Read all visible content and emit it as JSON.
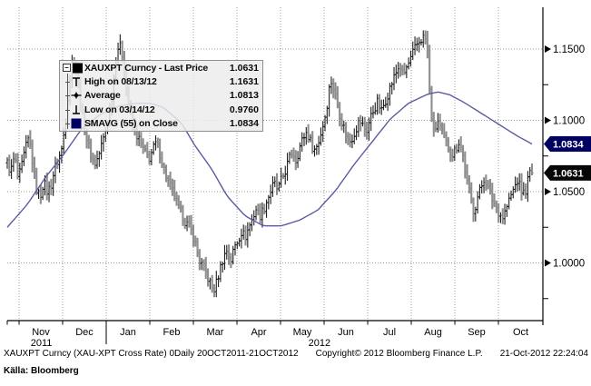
{
  "legend": {
    "rows": [
      {
        "icon": "expander-black-square",
        "label": "XAUXPT Curncy - Last Price",
        "value": "1.0631"
      },
      {
        "icon": "high-marker",
        "label": "High on 08/13/12",
        "value": "1.1631"
      },
      {
        "icon": "average-marker",
        "label": "Average",
        "value": "1.0813"
      },
      {
        "icon": "low-marker",
        "label": "Low on 03/14/12",
        "value": "0.9760"
      },
      {
        "icon": "navy-square",
        "label": "SMAVG (55) on Close",
        "value": "1.0834"
      }
    ]
  },
  "footer": {
    "line1_left": "XAUXPT Curncy (XAU-XPT Cross Rate) 0Daily 20OCT2011-21OCT2012",
    "line1_mid": "Copyright© 2012 Bloomberg Finance L.P.",
    "line1_right": "21-Oct-2012 22:24:04",
    "source": "Källa: Bloomberg"
  },
  "chart_data": {
    "type": "ohlc+line",
    "title": "XAUXPT Curncy (XAU-XPT Cross Rate) Daily, 20OCT2011-21OCT2012",
    "legend_position": "top-left",
    "grid": "dotted",
    "y_axis": {
      "side": "right",
      "major_ticks": [
        1.15,
        1.1,
        1.05,
        1.0
      ],
      "minor_ticks": [
        1.125,
        1.075,
        1.025,
        0.975
      ],
      "range": [
        0.96,
        1.175
      ],
      "decimals": 4
    },
    "price_tags": [
      {
        "value": "1.0834",
        "name": "sma-tag",
        "bg": "#000063",
        "fg": "#ffffff",
        "v": 1.0834
      },
      {
        "value": "1.0631",
        "name": "last-tag",
        "bg": "#070707",
        "fg": "#ffffff",
        "v": 1.0631
      }
    ],
    "x_axis": {
      "month_boundaries_t": [
        0.0225,
        0.1055,
        0.1886,
        0.2716,
        0.3547,
        0.4377,
        0.5208,
        0.6038,
        0.6869,
        0.7699,
        0.853,
        0.936
      ],
      "months": [
        {
          "label": "Nov",
          "t": 0.064
        },
        {
          "label": "Dec",
          "t": 0.1471
        },
        {
          "label": "Jan",
          "t": 0.2301
        },
        {
          "label": "Feb",
          "t": 0.3132
        },
        {
          "label": "Mar",
          "t": 0.3962
        },
        {
          "label": "Apr",
          "t": 0.4793
        },
        {
          "label": "May",
          "t": 0.5623
        },
        {
          "label": "Jun",
          "t": 0.6454
        },
        {
          "label": "Jul",
          "t": 0.7284
        },
        {
          "label": "Aug",
          "t": 0.8115
        },
        {
          "label": "Sep",
          "t": 0.8945
        },
        {
          "label": "Oct",
          "t": 0.9784
        }
      ],
      "years": [
        {
          "label": "2011",
          "t": 0.065
        },
        {
          "label": "2012",
          "t": 0.595
        }
      ],
      "year_divider_t": 0.1886
    },
    "stats": {
      "last": 1.0631,
      "high": 1.1631,
      "high_date": "08/13/12",
      "average": 1.0813,
      "low": 0.976,
      "low_date": "03/14/12",
      "sma_55_close": 1.0834
    },
    "series": {
      "bars": 252,
      "jitter": {
        "close": 0.007,
        "wick": 0.0045
      },
      "close_anchors": [
        [
          0.0,
          1.07
        ],
        [
          0.0069,
          1.064
        ],
        [
          0.0138,
          1.075
        ],
        [
          0.0208,
          1.058
        ],
        [
          0.0277,
          1.068
        ],
        [
          0.0346,
          1.08
        ],
        [
          0.0415,
          1.088
        ],
        [
          0.0484,
          1.07
        ],
        [
          0.0554,
          1.052
        ],
        [
          0.0623,
          1.046
        ],
        [
          0.0692,
          1.057
        ],
        [
          0.0761,
          1.05
        ],
        [
          0.083,
          1.054
        ],
        [
          0.09,
          1.066
        ],
        [
          0.0969,
          1.072
        ],
        [
          0.1038,
          1.08
        ],
        [
          0.1107,
          1.098
        ],
        [
          0.1176,
          1.125
        ],
        [
          0.1246,
          1.142
        ],
        [
          0.1315,
          1.138
        ],
        [
          0.1384,
          1.115
        ],
        [
          0.1453,
          1.098
        ],
        [
          0.1522,
          1.086
        ],
        [
          0.1592,
          1.076
        ],
        [
          0.1661,
          1.069
        ],
        [
          0.173,
          1.074
        ],
        [
          0.1799,
          1.083
        ],
        [
          0.1869,
          1.092
        ],
        [
          0.1938,
          1.105
        ],
        [
          0.2007,
          1.12
        ],
        [
          0.2076,
          1.147
        ],
        [
          0.2128,
          1.153
        ],
        [
          0.218,
          1.149
        ],
        [
          0.2232,
          1.137
        ],
        [
          0.2284,
          1.118
        ],
        [
          0.2353,
          1.102
        ],
        [
          0.2422,
          1.093
        ],
        [
          0.2491,
          1.088
        ],
        [
          0.2561,
          1.082
        ],
        [
          0.263,
          1.077
        ],
        [
          0.2699,
          1.073
        ],
        [
          0.2768,
          1.079
        ],
        [
          0.2837,
          1.084
        ],
        [
          0.2907,
          1.077
        ],
        [
          0.2976,
          1.067
        ],
        [
          0.3045,
          1.059
        ],
        [
          0.3114,
          1.053
        ],
        [
          0.3183,
          1.047
        ],
        [
          0.3253,
          1.039
        ],
        [
          0.3322,
          1.034
        ],
        [
          0.3391,
          1.029
        ],
        [
          0.346,
          1.025
        ],
        [
          0.3529,
          1.021
        ],
        [
          0.3599,
          1.011
        ],
        [
          0.3668,
          1.001
        ],
        [
          0.3737,
          0.997
        ],
        [
          0.3806,
          0.991
        ],
        [
          0.3875,
          0.985
        ],
        [
          0.3927,
          0.98
        ],
        [
          0.3979,
          0.985
        ],
        [
          0.4048,
          0.995
        ],
        [
          0.4117,
          1.004
        ],
        [
          0.4187,
          1.009
        ],
        [
          0.4256,
          1.001
        ],
        [
          0.4325,
          1.011
        ],
        [
          0.4394,
          1.016
        ],
        [
          0.4463,
          1.022
        ],
        [
          0.4533,
          1.018
        ],
        [
          0.4602,
          1.025
        ],
        [
          0.4671,
          1.031
        ],
        [
          0.474,
          1.038
        ],
        [
          0.4809,
          1.033
        ],
        [
          0.4879,
          1.037
        ],
        [
          0.4948,
          1.044
        ],
        [
          0.5017,
          1.05
        ],
        [
          0.5086,
          1.056
        ],
        [
          0.5156,
          1.051
        ],
        [
          0.5225,
          1.058
        ],
        [
          0.5294,
          1.064
        ],
        [
          0.5363,
          1.072
        ],
        [
          0.5432,
          1.078
        ],
        [
          0.5502,
          1.072
        ],
        [
          0.5571,
          1.081
        ],
        [
          0.564,
          1.088
        ],
        [
          0.5709,
          1.092
        ],
        [
          0.5779,
          1.085
        ],
        [
          0.5848,
          1.079
        ],
        [
          0.5917,
          1.083
        ],
        [
          0.5986,
          1.092
        ],
        [
          0.6055,
          1.103
        ],
        [
          0.6107,
          1.114
        ],
        [
          0.6159,
          1.129
        ],
        [
          0.6228,
          1.121
        ],
        [
          0.6298,
          1.11
        ],
        [
          0.6367,
          1.1
        ],
        [
          0.6436,
          1.093
        ],
        [
          0.6505,
          1.084
        ],
        [
          0.6574,
          1.088
        ],
        [
          0.6644,
          1.094
        ],
        [
          0.6713,
          1.1
        ],
        [
          0.6782,
          1.096
        ],
        [
          0.6851,
          1.093
        ],
        [
          0.692,
          1.102
        ],
        [
          0.699,
          1.108
        ],
        [
          0.7059,
          1.113
        ],
        [
          0.7128,
          1.106
        ],
        [
          0.7197,
          1.113
        ],
        [
          0.7266,
          1.12
        ],
        [
          0.7336,
          1.127
        ],
        [
          0.7405,
          1.133
        ],
        [
          0.7474,
          1.139
        ],
        [
          0.7543,
          1.131
        ],
        [
          0.7612,
          1.137
        ],
        [
          0.7682,
          1.142
        ],
        [
          0.7751,
          1.149
        ],
        [
          0.782,
          1.154
        ],
        [
          0.7889,
          1.157
        ],
        [
          0.7958,
          1.159
        ],
        [
          0.801,
          1.148
        ],
        [
          0.8062,
          1.11
        ],
        [
          0.8131,
          1.09
        ],
        [
          0.8201,
          1.1
        ],
        [
          0.827,
          1.092
        ],
        [
          0.8339,
          1.086
        ],
        [
          0.8408,
          1.081
        ],
        [
          0.8477,
          1.076
        ],
        [
          0.8547,
          1.08
        ],
        [
          0.8616,
          1.086
        ],
        [
          0.8685,
          1.075
        ],
        [
          0.8754,
          1.058
        ],
        [
          0.8824,
          1.046
        ],
        [
          0.8893,
          1.036
        ],
        [
          0.8962,
          1.046
        ],
        [
          0.9031,
          1.053
        ],
        [
          0.91,
          1.061
        ],
        [
          0.917,
          1.051
        ],
        [
          0.9239,
          1.045
        ],
        [
          0.9308,
          1.04
        ],
        [
          0.9377,
          1.035
        ],
        [
          0.9446,
          1.032
        ],
        [
          0.9516,
          1.039
        ],
        [
          0.9585,
          1.046
        ],
        [
          0.9654,
          1.052
        ],
        [
          0.9723,
          1.058
        ],
        [
          0.9792,
          1.051
        ],
        [
          0.9862,
          1.048
        ],
        [
          0.9913,
          1.057
        ],
        [
          0.9965,
          1.064
        ],
        [
          1.0,
          1.0631
        ]
      ],
      "sma_anchors": [
        [
          0.0,
          1.025
        ],
        [
          0.0381,
          1.041
        ],
        [
          0.0727,
          1.06
        ],
        [
          0.1073,
          1.076
        ],
        [
          0.1419,
          1.094
        ],
        [
          0.1765,
          1.104
        ],
        [
          0.2111,
          1.11
        ],
        [
          0.2457,
          1.112
        ],
        [
          0.2716,
          1.112
        ],
        [
          0.2976,
          1.109
        ],
        [
          0.3322,
          1.098
        ],
        [
          0.3581,
          1.082
        ],
        [
          0.3893,
          1.066
        ],
        [
          0.4187,
          1.047
        ],
        [
          0.4533,
          1.033
        ],
        [
          0.4879,
          1.026
        ],
        [
          0.5225,
          1.026
        ],
        [
          0.5571,
          1.03
        ],
        [
          0.5917,
          1.037
        ],
        [
          0.6263,
          1.051
        ],
        [
          0.6609,
          1.069
        ],
        [
          0.6955,
          1.085
        ],
        [
          0.7301,
          1.101
        ],
        [
          0.7647,
          1.112
        ],
        [
          0.7993,
          1.118
        ],
        [
          0.8201,
          1.12
        ],
        [
          0.8426,
          1.118
        ],
        [
          0.8685,
          1.113
        ],
        [
          0.8945,
          1.107
        ],
        [
          0.9204,
          1.101
        ],
        [
          0.9464,
          1.095
        ],
        [
          0.9723,
          1.089
        ],
        [
          1.0,
          1.0834
        ]
      ]
    },
    "colors": {
      "bar_up": "#1f1f1f",
      "bar_down": "#8e8e8e",
      "sma_line": "#5b5ba3",
      "grid": "#9a9a9a",
      "axis": "#000000",
      "tag_sma_bg": "#000063",
      "tag_last_bg": "#070707"
    }
  }
}
